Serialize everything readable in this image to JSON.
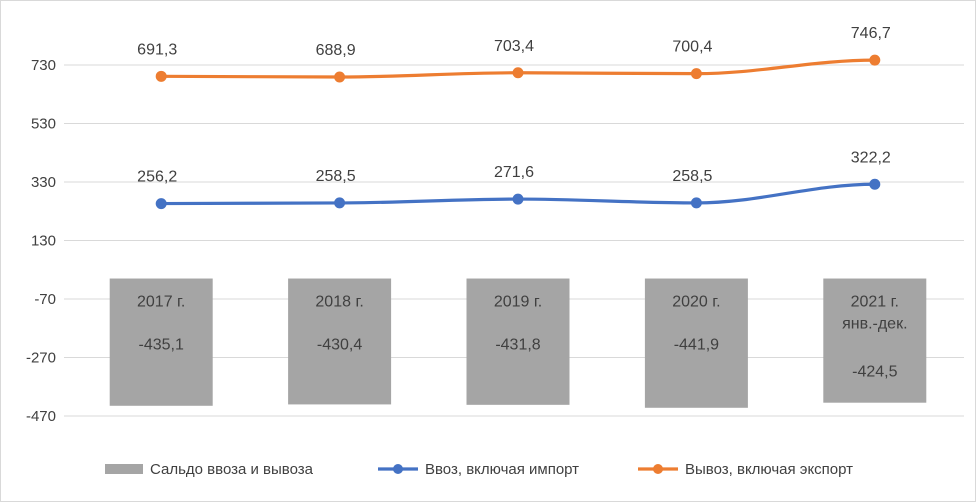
{
  "chart_data": {
    "type": "bar+line",
    "categories": [
      "2017 г.",
      "2018 г.",
      "2019 г.",
      "2020 г.",
      "2021 г. янв.-дек."
    ],
    "category_lines": [
      [
        "2017 г."
      ],
      [
        "2018 г."
      ],
      [
        "2019 г."
      ],
      [
        "2020 г."
      ],
      [
        "2021 г.",
        "янв.-дек."
      ]
    ],
    "series": [
      {
        "name": "Сальдо ввоза и вывоза",
        "kind": "bar",
        "color": "#a5a5a5",
        "values": [
          -435.1,
          -430.4,
          -431.8,
          -441.9,
          -424.5
        ],
        "labels": [
          "-435,1",
          "-430,4",
          "-431,8",
          "-441,9",
          "-424,5"
        ]
      },
      {
        "name": "Ввоз, включая импорт",
        "kind": "line",
        "color": "#4472c4",
        "values": [
          256.2,
          258.5,
          271.6,
          258.5,
          322.2
        ],
        "labels": [
          "256,2",
          "258,5",
          "271,6",
          "258,5",
          "322,2"
        ]
      },
      {
        "name": "Вывоз, включая экспорт",
        "kind": "line",
        "color": "#ed7d31",
        "values": [
          691.3,
          688.9,
          703.4,
          700.4,
          746.7
        ],
        "labels": [
          "691,3",
          "688,9",
          "703,4",
          "700,4",
          "746,7"
        ]
      }
    ],
    "y_ticks": [
      730,
      530,
      330,
      130,
      -70,
      -270,
      -470
    ],
    "y_tick_labels": [
      "730",
      "530",
      "330",
      "130",
      "-70",
      "-270",
      "-470"
    ],
    "ylim": [
      -470,
      730
    ],
    "grid": true,
    "legend_position": "bottom",
    "title": "",
    "xlabel": "",
    "ylabel": ""
  }
}
